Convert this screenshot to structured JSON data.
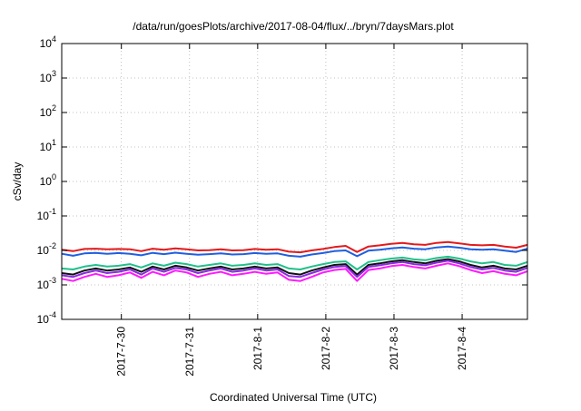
{
  "chart_data": {
    "type": "line",
    "title": "/data/run/goesPlots/archive/2017-08-04/flux/../bryn/7daysMars.plot",
    "xlabel": "Coordinated Universal Time (UTC)",
    "ylabel": "cSv/day",
    "y_scale": "log",
    "ylim": [
      0.0001,
      10000
    ],
    "y_ticks": [
      {
        "value": 0.0001,
        "base": "10",
        "exp": "-4"
      },
      {
        "value": 0.001,
        "base": "10",
        "exp": "-3"
      },
      {
        "value": 0.01,
        "base": "10",
        "exp": "-2"
      },
      {
        "value": 0.1,
        "base": "10",
        "exp": "-1"
      },
      {
        "value": 1,
        "base": "10",
        "exp": "0"
      },
      {
        "value": 10,
        "base": "10",
        "exp": "1"
      },
      {
        "value": 100,
        "base": "10",
        "exp": "2"
      },
      {
        "value": 1000,
        "base": "10",
        "exp": "3"
      },
      {
        "value": 10000,
        "base": "10",
        "exp": "4"
      }
    ],
    "xlim": [
      "2017-07-29T03:00",
      "2017-08-04T23:00"
    ],
    "x_ticks": [
      {
        "value": "2017-07-30T00:00",
        "label": "2017-7-30"
      },
      {
        "value": "2017-07-31T00:00",
        "label": "2017-7-31"
      },
      {
        "value": "2017-08-01T00:00",
        "label": "2017-8-1"
      },
      {
        "value": "2017-08-02T00:00",
        "label": "2017-8-2"
      },
      {
        "value": "2017-08-03T00:00",
        "label": "2017-8-3"
      },
      {
        "value": "2017-08-04T00:00",
        "label": "2017-8-4"
      }
    ],
    "grid": true,
    "x": [
      "2017-07-29T03:00",
      "2017-07-29T07:00",
      "2017-07-29T11:00",
      "2017-07-29T15:00",
      "2017-07-29T19:00",
      "2017-07-29T23:00",
      "2017-07-30T03:00",
      "2017-07-30T07:00",
      "2017-07-30T11:00",
      "2017-07-30T15:00",
      "2017-07-30T19:00",
      "2017-07-30T23:00",
      "2017-07-31T03:00",
      "2017-07-31T07:00",
      "2017-07-31T11:00",
      "2017-07-31T15:00",
      "2017-07-31T19:00",
      "2017-07-31T23:00",
      "2017-08-01T03:00",
      "2017-08-01T07:00",
      "2017-08-01T11:00",
      "2017-08-01T15:00",
      "2017-08-01T19:00",
      "2017-08-01T23:00",
      "2017-08-02T03:00",
      "2017-08-02T07:00",
      "2017-08-02T11:00",
      "2017-08-02T15:00",
      "2017-08-02T19:00",
      "2017-08-02T23:00",
      "2017-08-03T03:00",
      "2017-08-03T07:00",
      "2017-08-03T11:00",
      "2017-08-03T15:00",
      "2017-08-03T19:00",
      "2017-08-03T23:00",
      "2017-08-04T03:00",
      "2017-08-04T07:00",
      "2017-08-04T11:00",
      "2017-08-04T15:00",
      "2017-08-04T19:00",
      "2017-08-04T23:00"
    ],
    "series": [
      {
        "color": "#e31a1c",
        "values": [
          0.0105,
          0.0095,
          0.011,
          0.0112,
          0.0108,
          0.011,
          0.0108,
          0.0095,
          0.0112,
          0.0105,
          0.0115,
          0.0108,
          0.01,
          0.0102,
          0.0108,
          0.01,
          0.0102,
          0.011,
          0.0105,
          0.0108,
          0.0092,
          0.0088,
          0.01,
          0.011,
          0.0125,
          0.0135,
          0.009,
          0.013,
          0.014,
          0.0155,
          0.0165,
          0.015,
          0.0145,
          0.0165,
          0.0175,
          0.016,
          0.0145,
          0.014,
          0.0145,
          0.013,
          0.012,
          0.0145
        ]
      },
      {
        "color": "#1f5fe0",
        "values": [
          0.008,
          0.007,
          0.0082,
          0.0085,
          0.008,
          0.0084,
          0.008,
          0.0072,
          0.0085,
          0.0078,
          0.0086,
          0.008,
          0.0075,
          0.0078,
          0.0082,
          0.0076,
          0.0078,
          0.0084,
          0.008,
          0.0082,
          0.007,
          0.0066,
          0.0076,
          0.0084,
          0.0095,
          0.01,
          0.0068,
          0.0098,
          0.0105,
          0.0115,
          0.0122,
          0.0112,
          0.0108,
          0.0122,
          0.013,
          0.012,
          0.0108,
          0.0105,
          0.0108,
          0.0098,
          0.009,
          0.0112
        ]
      },
      {
        "color": "#20c08a",
        "values": [
          0.003,
          0.0028,
          0.0034,
          0.0038,
          0.0034,
          0.0036,
          0.004,
          0.0032,
          0.0042,
          0.0036,
          0.0044,
          0.004,
          0.0034,
          0.0038,
          0.0042,
          0.0036,
          0.0038,
          0.0042,
          0.0038,
          0.004,
          0.003,
          0.0028,
          0.0034,
          0.004,
          0.0046,
          0.0048,
          0.0028,
          0.0046,
          0.0052,
          0.0058,
          0.0062,
          0.0055,
          0.0052,
          0.006,
          0.0066,
          0.0058,
          0.0048,
          0.0042,
          0.0046,
          0.0038,
          0.0036,
          0.0046
        ]
      },
      {
        "color": "#111111",
        "values": [
          0.0022,
          0.002,
          0.0026,
          0.003,
          0.0026,
          0.0028,
          0.0032,
          0.0024,
          0.0034,
          0.0028,
          0.0036,
          0.0032,
          0.0026,
          0.003,
          0.0034,
          0.0028,
          0.003,
          0.0034,
          0.003,
          0.0032,
          0.0022,
          0.002,
          0.0026,
          0.0032,
          0.0038,
          0.004,
          0.002,
          0.0038,
          0.0042,
          0.0048,
          0.0052,
          0.0046,
          0.0042,
          0.005,
          0.0056,
          0.0048,
          0.0038,
          0.0032,
          0.0036,
          0.003,
          0.0028,
          0.0036
        ]
      },
      {
        "color": "#8a2be2",
        "values": [
          0.0019,
          0.0017,
          0.0022,
          0.0026,
          0.0022,
          0.0024,
          0.0028,
          0.002,
          0.003,
          0.0024,
          0.0031,
          0.0028,
          0.0022,
          0.0026,
          0.003,
          0.0024,
          0.0026,
          0.003,
          0.0026,
          0.0028,
          0.0018,
          0.0017,
          0.0022,
          0.0028,
          0.0033,
          0.0035,
          0.0017,
          0.0033,
          0.0037,
          0.0042,
          0.0046,
          0.004,
          0.0037,
          0.0044,
          0.005,
          0.0042,
          0.0033,
          0.0028,
          0.0031,
          0.0026,
          0.0024,
          0.0031
        ]
      },
      {
        "color": "#ff1aff",
        "values": [
          0.0015,
          0.0013,
          0.0017,
          0.0021,
          0.0017,
          0.0019,
          0.0023,
          0.0016,
          0.0024,
          0.0019,
          0.0026,
          0.0023,
          0.0017,
          0.0021,
          0.0024,
          0.0019,
          0.0021,
          0.0024,
          0.0021,
          0.0023,
          0.0014,
          0.0013,
          0.0017,
          0.0023,
          0.0027,
          0.0029,
          0.0013,
          0.0027,
          0.003,
          0.0035,
          0.0038,
          0.0033,
          0.003,
          0.0036,
          0.0042,
          0.0035,
          0.0027,
          0.0022,
          0.0025,
          0.0021,
          0.0019,
          0.0025
        ]
      }
    ]
  }
}
